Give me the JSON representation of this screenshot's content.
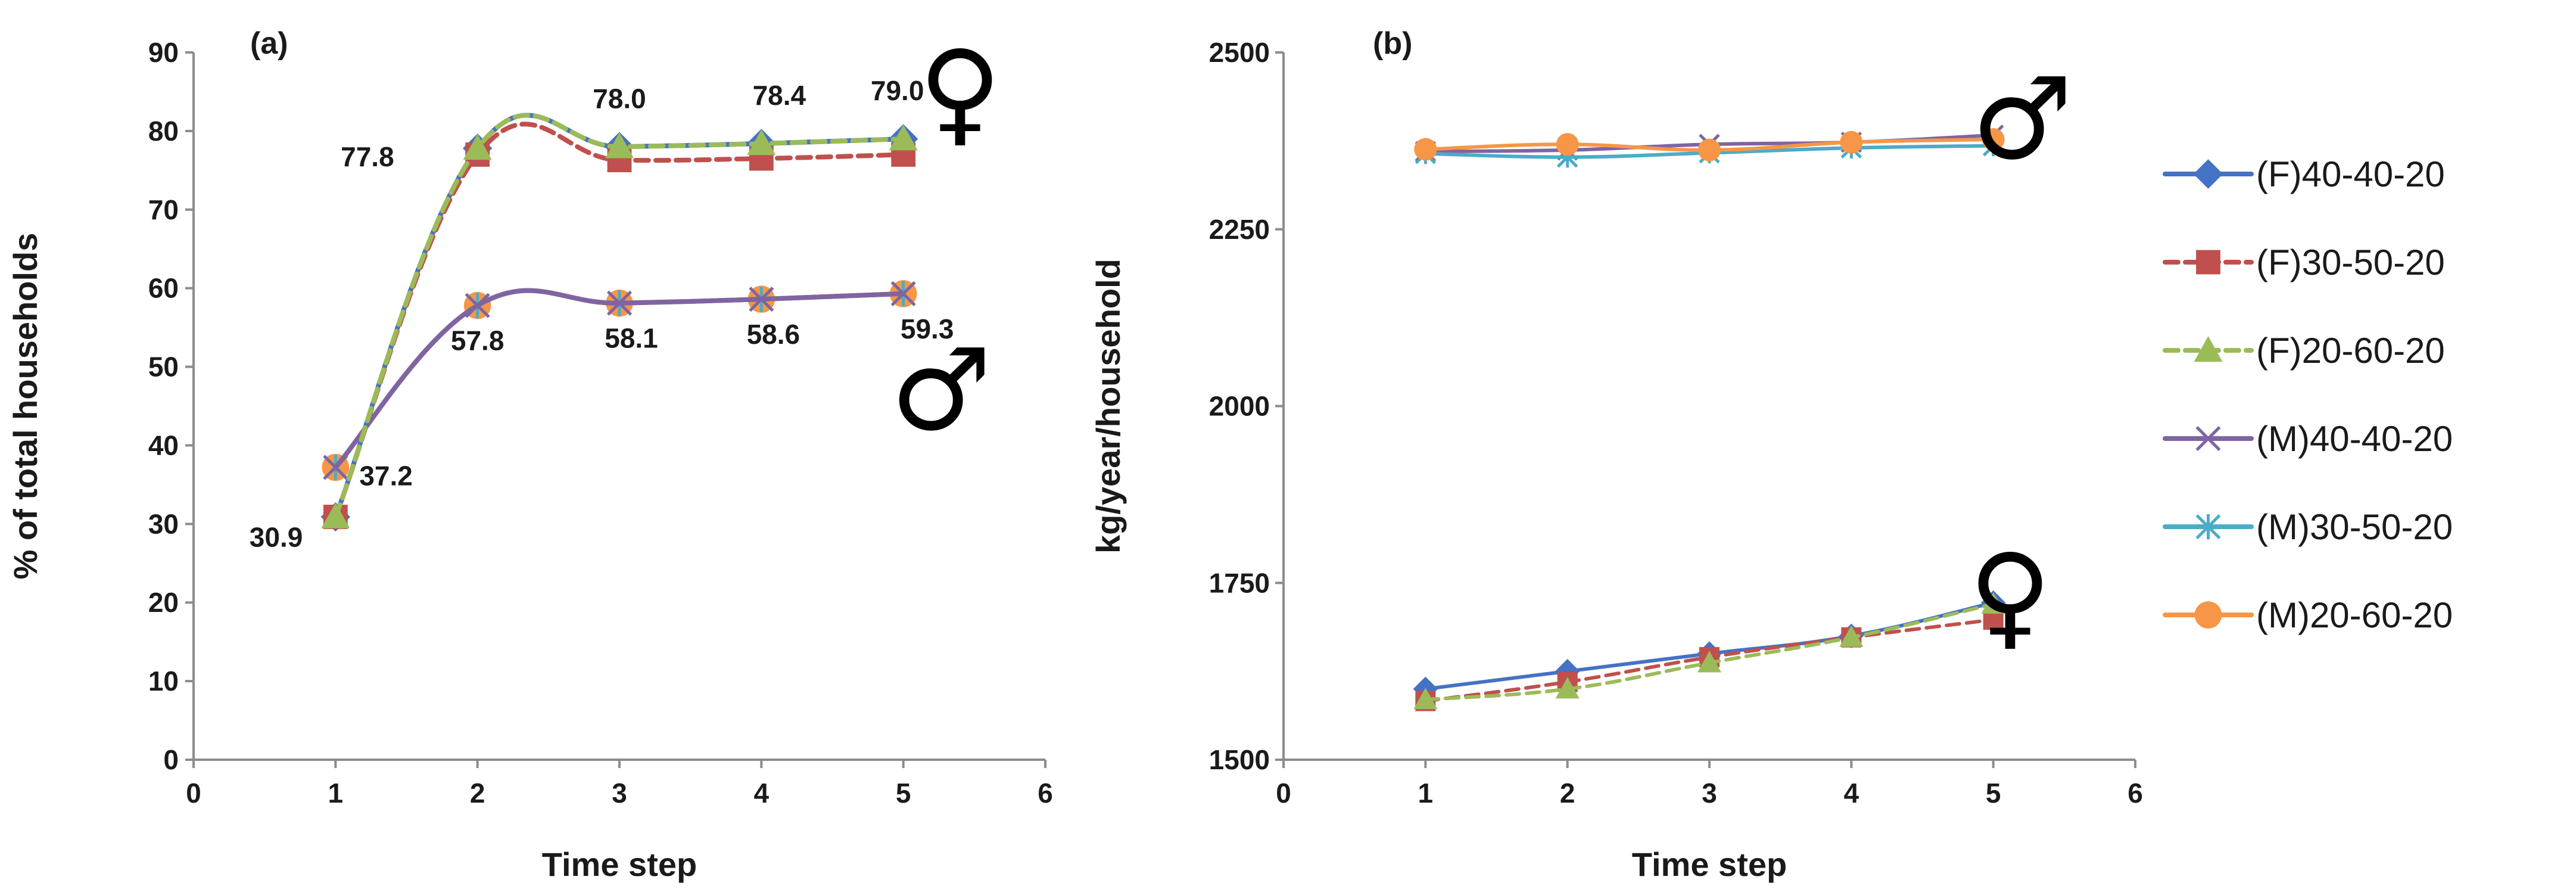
{
  "chart_data": [
    {
      "type": "line",
      "panel_label": "(a)",
      "xlabel": "Time step",
      "ylabel": "% of total households",
      "xlim": [
        0,
        6
      ],
      "ylim": [
        0,
        90
      ],
      "xticks": [
        "0",
        "1",
        "2",
        "3",
        "4",
        "5",
        "6"
      ],
      "yticks": [
        "0",
        "10",
        "20",
        "30",
        "40",
        "50",
        "60",
        "70",
        "80",
        "90"
      ],
      "x": [
        1,
        2,
        3,
        4,
        5
      ],
      "series": [
        {
          "name": "(F)40-40-20",
          "values": [
            30.9,
            77.8,
            78.0,
            78.4,
            79.0
          ]
        },
        {
          "name": "(F)30-50-20",
          "values": [
            30.9,
            77.0,
            76.3,
            76.5,
            77.0
          ]
        },
        {
          "name": "(F)20-60-20",
          "values": [
            30.9,
            77.8,
            78.0,
            78.4,
            79.0
          ]
        },
        {
          "name": "(M)40-40-20",
          "values": [
            37.2,
            57.8,
            58.1,
            58.6,
            59.3
          ]
        },
        {
          "name": "(M)30-50-20",
          "values": [
            37.2,
            57.8,
            58.1,
            58.6,
            59.3
          ]
        },
        {
          "name": "(M)20-60-20",
          "values": [
            37.2,
            57.8,
            58.1,
            58.6,
            59.3
          ]
        }
      ],
      "data_labels": {
        "female": [
          "30.9",
          "77.8",
          "78.0",
          "78.4",
          "79.0"
        ],
        "male": [
          "37.2",
          "57.8",
          "58.1",
          "58.6",
          "59.3"
        ]
      },
      "annotations": {
        "female_symbol": "♀",
        "male_symbol": "♂"
      }
    },
    {
      "type": "line",
      "panel_label": "(b)",
      "xlabel": "Time step",
      "ylabel": "kg/year/household",
      "xlim": [
        0,
        6
      ],
      "ylim": [
        1500,
        2500
      ],
      "xticks": [
        "0",
        "1",
        "2",
        "3",
        "4",
        "5",
        "6"
      ],
      "yticks": [
        "1500",
        "1750",
        "2000",
        "2250",
        "2500"
      ],
      "x": [
        1,
        2,
        3,
        4,
        5
      ],
      "series": [
        {
          "name": "(F)40-40-20",
          "values": [
            1600,
            1625,
            1650,
            1675,
            1722
          ]
        },
        {
          "name": "(F)30-50-20",
          "values": [
            1583,
            1610,
            1645,
            1673,
            1698
          ]
        },
        {
          "name": "(F)20-60-20",
          "values": [
            1585,
            1600,
            1637,
            1673,
            1720
          ]
        },
        {
          "name": "(M)40-40-20",
          "values": [
            2360,
            2362,
            2370,
            2373,
            2383
          ]
        },
        {
          "name": "(M)30-50-20",
          "values": [
            2357,
            2352,
            2358,
            2365,
            2368
          ]
        },
        {
          "name": "(M)20-60-20",
          "values": [
            2363,
            2370,
            2362,
            2373,
            2377
          ]
        }
      ],
      "annotations": {
        "female_symbol": "♀",
        "male_symbol": "♂"
      }
    }
  ],
  "legend": [
    {
      "label": "(F)40-40-20",
      "color": "#4472C4",
      "marker": "diamond",
      "dash": false
    },
    {
      "label": "(F)30-50-20",
      "color": "#C0504D",
      "marker": "square",
      "dash": true
    },
    {
      "label": "(F)20-60-20",
      "color": "#9BBB59",
      "marker": "triangle",
      "dash": true
    },
    {
      "label": "(M)40-40-20",
      "color": "#8064A2",
      "marker": "x",
      "dash": false
    },
    {
      "label": "(M)30-50-20",
      "color": "#4BACC6",
      "marker": "star",
      "dash": false
    },
    {
      "label": "(M)20-60-20",
      "color": "#F79646",
      "marker": "circle",
      "dash": false
    }
  ]
}
